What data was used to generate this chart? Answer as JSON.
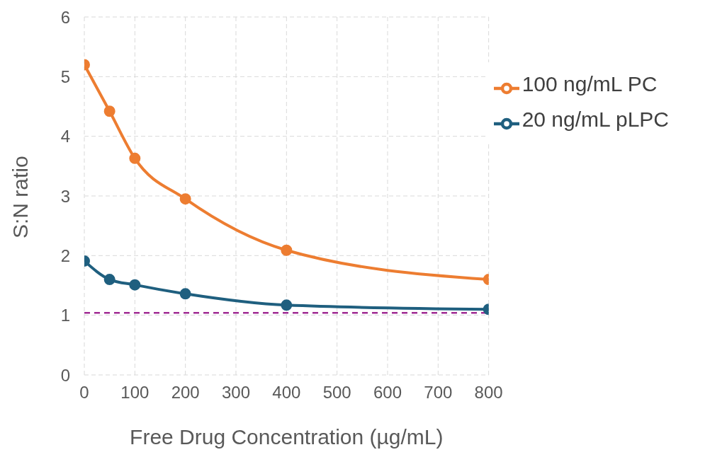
{
  "chart_data": {
    "type": "line",
    "xlabel": "Free Drug Concentration (µg/mL)",
    "ylabel": "S:N ratio",
    "x": [
      0,
      50,
      100,
      200,
      400,
      800
    ],
    "series": [
      {
        "name": "20 ng/mL pLPC",
        "color": "#1f5f7f",
        "values": [
          1.91,
          1.6,
          1.51,
          1.36,
          1.17,
          1.1
        ]
      },
      {
        "name": "100 ng/mL PC",
        "color": "#ed7d31",
        "values": [
          5.2,
          4.42,
          3.63,
          2.95,
          2.09,
          1.6
        ]
      }
    ],
    "xlim": [
      0,
      800
    ],
    "xticks": [
      0,
      100,
      200,
      300,
      400,
      500,
      600,
      700,
      800
    ],
    "ylim": [
      0,
      6
    ],
    "yticks": [
      0,
      1,
      2,
      3,
      4,
      5,
      6
    ],
    "ref_lines": [
      {
        "axis": "y",
        "value": 1.04,
        "color": "#a02b93",
        "line_style": "dashed"
      }
    ],
    "grid": true,
    "legend": "top right",
    "marker": "circle",
    "line_style": "solid"
  }
}
